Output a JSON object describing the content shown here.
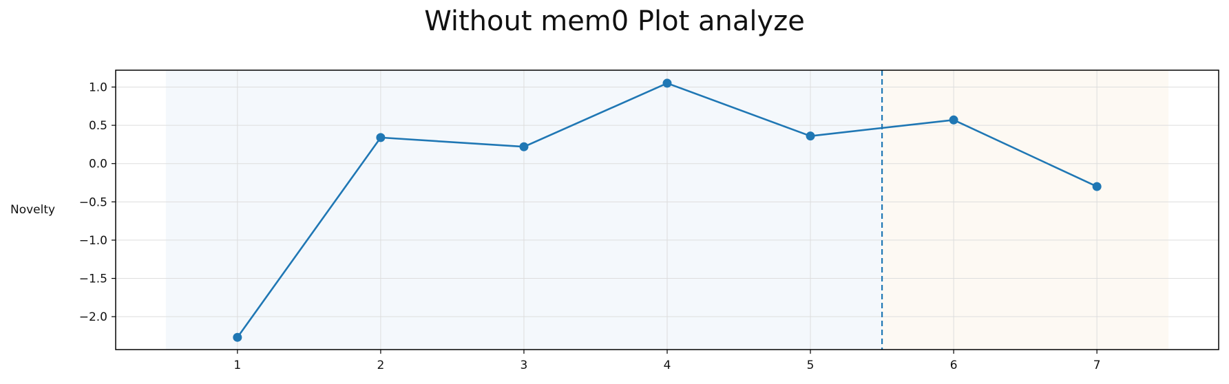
{
  "chart_data": {
    "type": "line",
    "title": "Without mem0 Plot analyze",
    "xlabel": "",
    "ylabel": "Novelty",
    "x": [
      1,
      2,
      3,
      4,
      5,
      6,
      7
    ],
    "series": [
      {
        "values": [
          -2.27,
          0.34,
          0.22,
          1.05,
          0.36,
          0.57,
          -0.3
        ]
      }
    ],
    "xticks": [
      "1",
      "2",
      "3",
      "4",
      "5",
      "6",
      "7"
    ],
    "yticks": [
      "1.0",
      "0.5",
      "0.0",
      "−0.5",
      "−1.0",
      "−1.5",
      "−2.0"
    ],
    "ytick_values": [
      1.0,
      0.5,
      0.0,
      -0.5,
      -1.0,
      -1.5,
      -2.0
    ],
    "xlim": [
      0.15,
      7.85
    ],
    "ylim": [
      -2.43,
      1.22
    ],
    "grid": true,
    "shaded_regions": [
      {
        "from": 0.5,
        "to": 5.5,
        "color": "#f4f8fc"
      },
      {
        "from": 5.5,
        "to": 7.5,
        "color": "#fdf9f3"
      }
    ],
    "vline": {
      "x": 5.5,
      "style": "dashed"
    },
    "colors": {
      "line": "#1f77b4",
      "axis": "#000000",
      "grid": "#dddddd"
    }
  }
}
